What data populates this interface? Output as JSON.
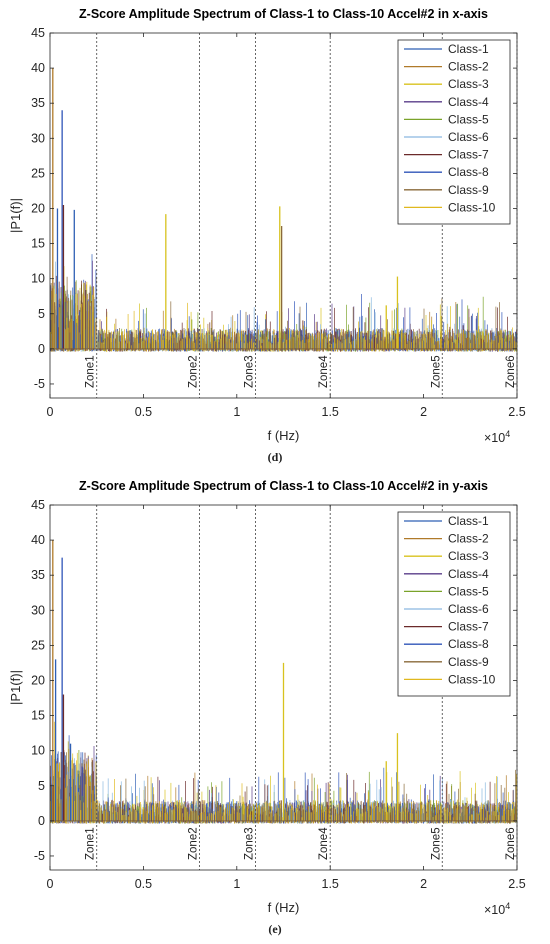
{
  "colors": {
    "series": [
      "#2f5fb4",
      "#b07a2a",
      "#d8c21e",
      "#5a3d8a",
      "#7aa32a",
      "#8ab8e0",
      "#6b2a2a",
      "#2f55b8",
      "#8a6a3a",
      "#e0b81e"
    ],
    "axis": "#262626",
    "zone_line": "#555555"
  },
  "chart_data": [
    {
      "type": "line",
      "title": "Z-Score Amplitude Spectrum of Class-1 to Class-10 Accel#2 in x-axis",
      "xlabel": "f (Hz)",
      "ylabel": "|P1(f)|",
      "x_multiplier_label": "×10",
      "x_multiplier_exp": "4",
      "xlim": [
        0,
        25000
      ],
      "ylim": [
        -7,
        45
      ],
      "x_ticks": [
        0,
        5000,
        10000,
        15000,
        20000,
        25000
      ],
      "x_tick_labels": [
        "0",
        "0.5",
        "1",
        "1.5",
        "2",
        "2.5"
      ],
      "y_ticks": [
        -5,
        0,
        5,
        10,
        15,
        20,
        25,
        30,
        35,
        40,
        45
      ],
      "legend_position": "top-right",
      "series_names": [
        "Class-1",
        "Class-2",
        "Class-3",
        "Class-4",
        "Class-5",
        "Class-6",
        "Class-7",
        "Class-8",
        "Class-9",
        "Class-10"
      ],
      "zones": [
        {
          "label": "Zone1",
          "x": 2500
        },
        {
          "label": "Zone2",
          "x": 8000
        },
        {
          "label": "Zone3",
          "x": 11000
        },
        {
          "label": "Zone4",
          "x": 15000
        },
        {
          "label": "Zone5",
          "x": 21000
        },
        {
          "label": "Zone6",
          "x": 25000
        }
      ],
      "peaks": [
        {
          "series": 1,
          "x": 150,
          "y": 40
        },
        {
          "series": 0,
          "x": 400,
          "y": 20
        },
        {
          "series": 7,
          "x": 650,
          "y": 34
        },
        {
          "series": 6,
          "x": 720,
          "y": 20.5
        },
        {
          "series": 0,
          "x": 1300,
          "y": 19.8
        },
        {
          "series": 2,
          "x": 6200,
          "y": 19.2
        },
        {
          "series": 8,
          "x": 12400,
          "y": 17.5
        },
        {
          "series": 2,
          "x": 12300,
          "y": 20.3
        },
        {
          "series": 2,
          "x": 18600,
          "y": 10.3
        },
        {
          "series": 2,
          "x": 18000,
          "y": 6.2
        }
      ],
      "caption": "(d)"
    },
    {
      "type": "line",
      "title": "Z-Score Amplitude Spectrum of Class-1 to Class-10 Accel#2 in y-axis",
      "xlabel": "f (Hz)",
      "ylabel": "|P1(f)|",
      "x_multiplier_label": "×10",
      "x_multiplier_exp": "4",
      "xlim": [
        0,
        25000
      ],
      "ylim": [
        -7,
        45
      ],
      "x_ticks": [
        0,
        5000,
        10000,
        15000,
        20000,
        25000
      ],
      "x_tick_labels": [
        "0",
        "0.5",
        "1",
        "1.5",
        "2",
        "2.5"
      ],
      "y_ticks": [
        -5,
        0,
        5,
        10,
        15,
        20,
        25,
        30,
        35,
        40,
        45
      ],
      "legend_position": "top-right",
      "series_names": [
        "Class-1",
        "Class-2",
        "Class-3",
        "Class-4",
        "Class-5",
        "Class-6",
        "Class-7",
        "Class-8",
        "Class-9",
        "Class-10"
      ],
      "zones": [
        {
          "label": "Zone1",
          "x": 2500
        },
        {
          "label": "Zone2",
          "x": 8000
        },
        {
          "label": "Zone3",
          "x": 11000
        },
        {
          "label": "Zone4",
          "x": 15000
        },
        {
          "label": "Zone5",
          "x": 21000
        },
        {
          "label": "Zone6",
          "x": 25000
        }
      ],
      "peaks": [
        {
          "series": 1,
          "x": 150,
          "y": 40
        },
        {
          "series": 7,
          "x": 650,
          "y": 37.5
        },
        {
          "series": 6,
          "x": 720,
          "y": 18
        },
        {
          "series": 0,
          "x": 300,
          "y": 23
        },
        {
          "series": 0,
          "x": 1100,
          "y": 11
        },
        {
          "series": 2,
          "x": 12500,
          "y": 22.5
        },
        {
          "series": 2,
          "x": 18600,
          "y": 12.5
        },
        {
          "series": 2,
          "x": 18000,
          "y": 8.5
        }
      ],
      "caption": "(e)"
    }
  ]
}
